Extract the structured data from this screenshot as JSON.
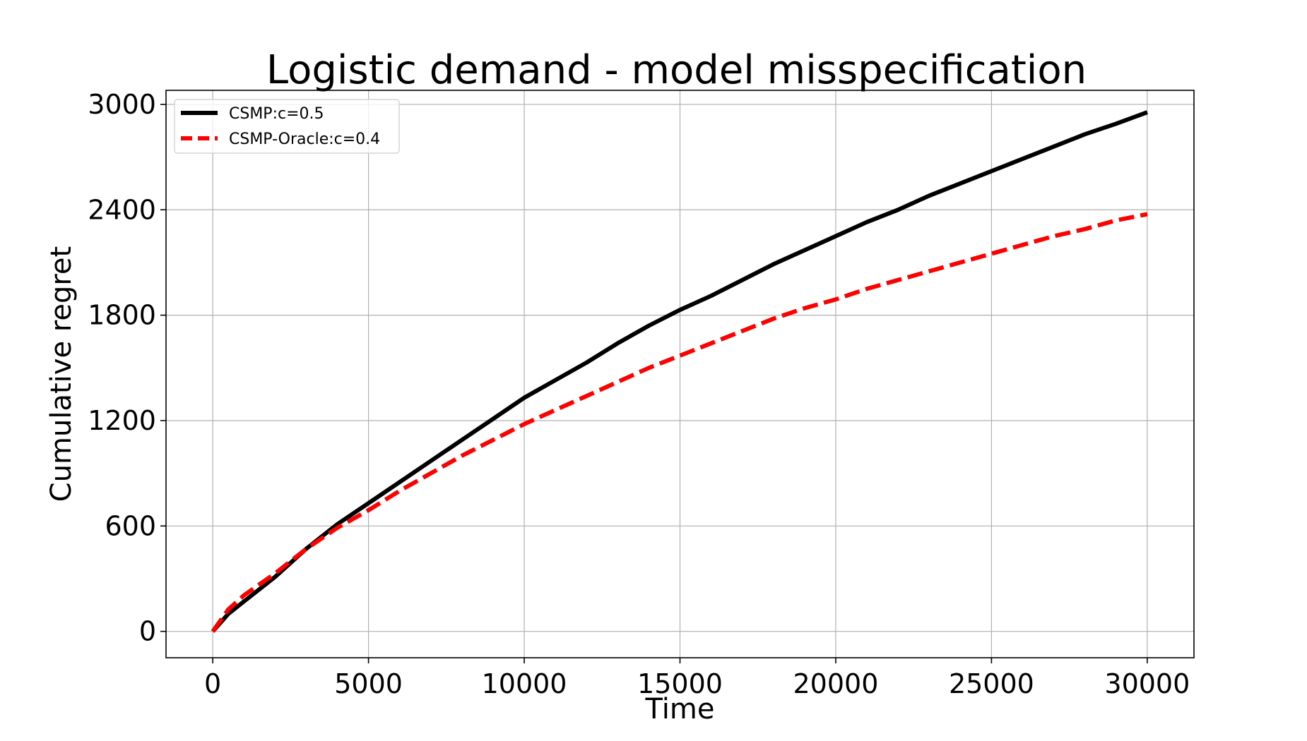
{
  "chart_data": {
    "type": "line",
    "title": "Logistic demand - model misspecification",
    "xlabel": "Time",
    "ylabel": "Cumulative regret",
    "xlim": [
      -1500,
      31500
    ],
    "ylim": [
      -150,
      3080
    ],
    "xticks": [
      0,
      5000,
      10000,
      15000,
      20000,
      25000,
      30000
    ],
    "yticks": [
      0,
      600,
      1200,
      1800,
      2400,
      3000
    ],
    "xtick_labels": [
      "0",
      "5000",
      "10000",
      "15000",
      "20000",
      "25000",
      "30000"
    ],
    "ytick_labels": [
      "0",
      "600",
      "1200",
      "1800",
      "2400",
      "3000"
    ],
    "grid": true,
    "legend_position": "top-left",
    "series": [
      {
        "name": "CSMP:c=0.5",
        "color": "#000000",
        "style": "solid",
        "x": [
          0,
          500,
          1000,
          2000,
          3000,
          4000,
          5000,
          6000,
          7000,
          8000,
          9000,
          10000,
          11000,
          12000,
          13000,
          14000,
          15000,
          16000,
          17000,
          18000,
          19000,
          20000,
          21000,
          22000,
          23000,
          24000,
          25000,
          26000,
          27000,
          28000,
          29000,
          30000
        ],
        "y": [
          0,
          100,
          170,
          310,
          470,
          610,
          730,
          850,
          970,
          1090,
          1210,
          1330,
          1430,
          1530,
          1640,
          1740,
          1830,
          1910,
          2000,
          2090,
          2170,
          2250,
          2330,
          2400,
          2480,
          2550,
          2620,
          2690,
          2760,
          2830,
          2890,
          2955
        ]
      },
      {
        "name": "CSMP-Oracle:c=0.4",
        "color": "#ff0000",
        "style": "dashed",
        "x": [
          0,
          500,
          1000,
          2000,
          3000,
          4000,
          5000,
          6000,
          7000,
          8000,
          9000,
          10000,
          11000,
          12000,
          13000,
          14000,
          15000,
          16000,
          17000,
          18000,
          19000,
          20000,
          21000,
          22000,
          23000,
          24000,
          25000,
          26000,
          27000,
          28000,
          29000,
          30000
        ],
        "y": [
          0,
          125,
          205,
          330,
          470,
          590,
          690,
          800,
          900,
          1000,
          1090,
          1180,
          1260,
          1340,
          1420,
          1500,
          1570,
          1640,
          1710,
          1780,
          1840,
          1890,
          1950,
          2000,
          2050,
          2100,
          2150,
          2200,
          2250,
          2290,
          2340,
          2375
        ]
      }
    ]
  }
}
